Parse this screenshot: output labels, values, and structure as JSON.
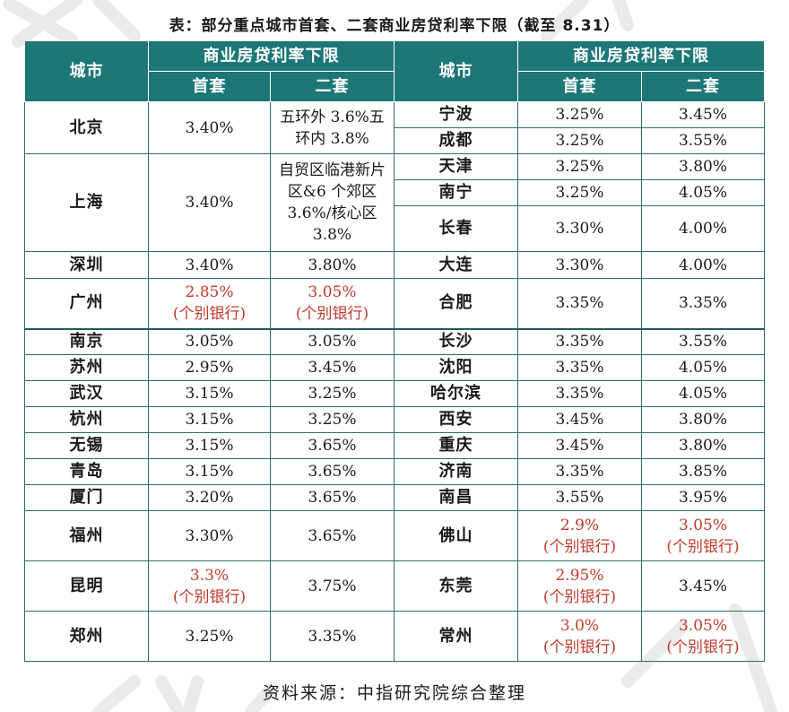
{
  "title": "表：部分重点城市首套、二套商业房贷利率下限（截至 8.31）",
  "header": {
    "city": "城市",
    "group": "商业房贷利率下限",
    "first": "首套",
    "second": "二套"
  },
  "rows": [
    {
      "l_city": "北京",
      "l_first": "3.40%",
      "l_second": "五环外 3.6%五环内 3.8%",
      "r_city": "宁波",
      "r_first": "3.25%",
      "r_second": "3.45%"
    },
    {
      "r_city": "成都",
      "r_first": "3.25%",
      "r_second": "3.55%"
    },
    {
      "l_city": "上海",
      "l_first": "3.40%",
      "l_second": "自贸区临港新片区&6 个郊区 3.6%/核心区 3.8%",
      "r_city": "天津",
      "r_first": "3.25%",
      "r_second": "3.80%"
    },
    {
      "r_city": "南宁",
      "r_first": "3.25%",
      "r_second": "4.05%"
    },
    {
      "r_city": "长春",
      "r_first": "3.30%",
      "r_second": "4.00%"
    },
    {
      "l_city": "深圳",
      "l_first": "3.40%",
      "l_second": "3.80%",
      "r_city": "大连",
      "r_first": "3.30%",
      "r_second": "4.00%"
    },
    {
      "l_city": "广州",
      "l_first": "2.85%",
      "l_first_note": "(个别银行)",
      "l_second": "3.05%",
      "l_second_note": "(个别银行)",
      "r_city": "合肥",
      "r_first": "3.35%",
      "r_second": "3.35%"
    },
    {
      "l_city": "南京",
      "l_first": "3.05%",
      "l_second": "3.05%",
      "r_city": "长沙",
      "r_first": "3.35%",
      "r_second": "3.55%"
    },
    {
      "l_city": "苏州",
      "l_first": "2.95%",
      "l_second": "3.45%",
      "r_city": "沈阳",
      "r_first": "3.35%",
      "r_second": "4.05%"
    },
    {
      "l_city": "武汉",
      "l_first": "3.15%",
      "l_second": "3.25%",
      "r_city": "哈尔滨",
      "r_first": "3.35%",
      "r_second": "4.05%"
    },
    {
      "l_city": "杭州",
      "l_first": "3.15%",
      "l_second": "3.25%",
      "r_city": "西安",
      "r_first": "3.45%",
      "r_second": "3.80%"
    },
    {
      "l_city": "无锡",
      "l_first": "3.15%",
      "l_second": "3.65%",
      "r_city": "重庆",
      "r_first": "3.45%",
      "r_second": "3.80%"
    },
    {
      "l_city": "青岛",
      "l_first": "3.15%",
      "l_second": "3.65%",
      "r_city": "济南",
      "r_first": "3.35%",
      "r_second": "3.85%"
    },
    {
      "l_city": "厦门",
      "l_first": "3.20%",
      "l_second": "3.65%",
      "r_city": "南昌",
      "r_first": "3.55%",
      "r_second": "3.95%"
    },
    {
      "l_city": "福州",
      "l_first": "3.30%",
      "l_second": "3.65%",
      "r_city": "佛山",
      "r_first": "2.9%",
      "r_first_note": "(个别银行)",
      "r_second": "3.05%",
      "r_second_note": "(个别银行)"
    },
    {
      "l_city": "昆明",
      "l_first": "3.3%",
      "l_first_note": "(个别银行)",
      "l_second": "3.75%",
      "r_city": "东莞",
      "r_first": "2.95%",
      "r_first_note": "(个别银行)",
      "r_second": "3.45%"
    },
    {
      "l_city": "郑州",
      "l_first": "3.25%",
      "l_second": "3.35%",
      "r_city": "常州",
      "r_first": "3.0%",
      "r_first_note": "(个别银行)",
      "r_second": "3.05%",
      "r_second_note": "(个别银行)"
    }
  ],
  "source": "资料来源：中指研究院综合整理",
  "colors": {
    "header_bg": "#1d7777",
    "highlight": "#c0392b",
    "border": "#2f6b6b"
  }
}
